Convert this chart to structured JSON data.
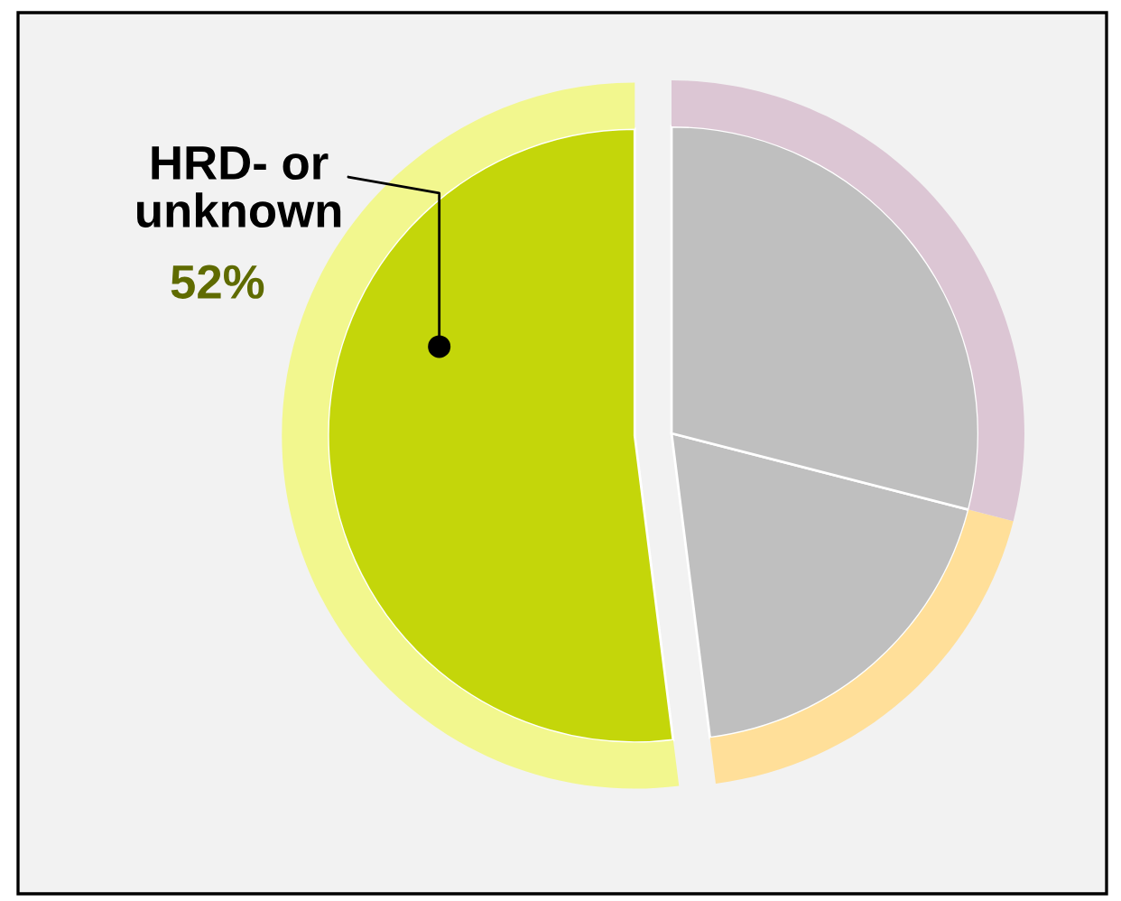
{
  "chart_data": {
    "type": "pie",
    "categories": [
      "HRD- or unknown",
      null,
      null
    ],
    "series": [
      {
        "type": "pie",
        "values": [
          52,
          19,
          29
        ],
        "colors": [
          "#c4d60a",
          "#bfbfbf",
          "#bfbfbf"
        ]
      },
      {
        "type": "donut",
        "values": [
          52,
          19,
          29
        ],
        "colors": [
          "#f2f78e",
          "#ffdf99",
          "#dcc6d4"
        ]
      }
    ],
    "value_labels": [
      "52%",
      null,
      null
    ]
  }
}
